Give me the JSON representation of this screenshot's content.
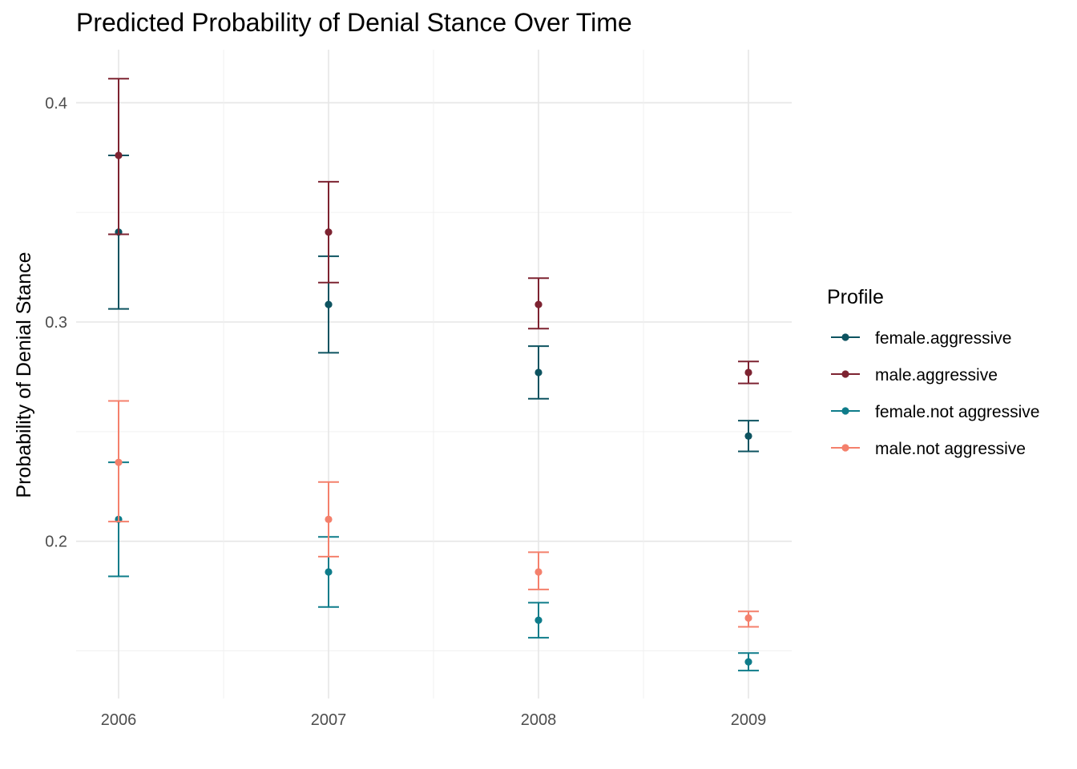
{
  "chart_data": {
    "type": "scatter",
    "title": "Predicted Probability of Denial Stance Over Time",
    "xlabel": "",
    "ylabel": "Probability of Denial Stance",
    "categories": [
      "2006",
      "2007",
      "2008",
      "2009"
    ],
    "ylim": [
      0.14,
      0.425
    ],
    "yticks": [
      0.2,
      0.3,
      0.4
    ],
    "ytick_labels": [
      "0.2",
      "0.3",
      "0.4"
    ],
    "grid": true,
    "legend": {
      "title": "Profile",
      "placement": "right"
    },
    "series": [
      {
        "name": "female.aggressive",
        "color": "#0d5360",
        "values": [
          0.341,
          0.308,
          0.277,
          0.248
        ],
        "lower": [
          0.306,
          0.286,
          0.265,
          0.241
        ],
        "upper": [
          0.376,
          0.33,
          0.289,
          0.255
        ]
      },
      {
        "name": "male.aggressive",
        "color": "#7d2331",
        "values": [
          0.376,
          0.341,
          0.308,
          0.277
        ],
        "lower": [
          0.34,
          0.318,
          0.297,
          0.272
        ],
        "upper": [
          0.411,
          0.364,
          0.32,
          0.282
        ]
      },
      {
        "name": "female.not aggressive",
        "color": "#0e7c8a",
        "values": [
          0.21,
          0.186,
          0.164,
          0.145
        ],
        "lower": [
          0.184,
          0.17,
          0.156,
          0.141
        ],
        "upper": [
          0.236,
          0.202,
          0.172,
          0.149
        ]
      },
      {
        "name": "male.not aggressive",
        "color": "#f4806c",
        "values": [
          0.236,
          0.21,
          0.186,
          0.165
        ],
        "lower": [
          0.209,
          0.193,
          0.178,
          0.161
        ],
        "upper": [
          0.264,
          0.227,
          0.195,
          0.168
        ]
      }
    ]
  }
}
